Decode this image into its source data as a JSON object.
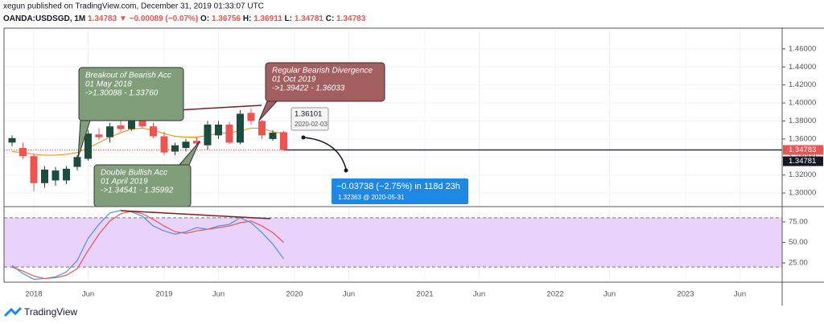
{
  "header": {
    "publisher": "xegun published on TradingView.com, December 31, 2019 01:33:07 UTC",
    "symbol": "OANDA:USDSGD, 1M",
    "price": "1.34783",
    "change": "−0.00089 (−0.07%)",
    "ohlc": [
      {
        "label": "O:",
        "value": "1.36756"
      },
      {
        "label": "H:",
        "value": "1.36911"
      },
      {
        "label": "L:",
        "value": "1.34781"
      },
      {
        "label": "C:",
        "value": "1.34783"
      }
    ]
  },
  "footer": {
    "brand": "TradingView"
  },
  "chart_data": [
    {
      "type": "candlestick",
      "x": [
        -2,
        -1,
        0,
        1,
        2,
        3,
        4,
        5,
        6,
        7,
        8,
        9,
        10,
        11,
        12,
        13,
        14,
        15,
        16,
        17,
        18,
        19,
        20,
        21,
        22,
        23
      ],
      "open": [
        1.356,
        1.35,
        1.341,
        1.311,
        1.314,
        1.314,
        1.329,
        1.338,
        1.365,
        1.362,
        1.375,
        1.371,
        1.388,
        1.374,
        1.363,
        1.346,
        1.35,
        1.358,
        1.353,
        1.364,
        1.376,
        1.356,
        1.389,
        1.38,
        1.36,
        1.36756
      ],
      "high": [
        1.364,
        1.356,
        1.344,
        1.33,
        1.329,
        1.33,
        1.342,
        1.37,
        1.372,
        1.378,
        1.382,
        1.39,
        1.39,
        1.378,
        1.368,
        1.356,
        1.36,
        1.362,
        1.38,
        1.38,
        1.379,
        1.392,
        1.394,
        1.381,
        1.37,
        1.36911
      ],
      "low": [
        1.352,
        1.338,
        1.302,
        1.306,
        1.308,
        1.31,
        1.325,
        1.336,
        1.359,
        1.356,
        1.368,
        1.369,
        1.372,
        1.361,
        1.342,
        1.342,
        1.346,
        1.353,
        1.348,
        1.36,
        1.354,
        1.354,
        1.376,
        1.36,
        1.358,
        1.34781
      ],
      "close": [
        1.361,
        1.341,
        1.311,
        1.326,
        1.325,
        1.327,
        1.34,
        1.366,
        1.362,
        1.374,
        1.371,
        1.388,
        1.374,
        1.363,
        1.345,
        1.353,
        1.357,
        1.355,
        1.376,
        1.376,
        1.356,
        1.388,
        1.38,
        1.364,
        1.367,
        1.34783
      ],
      "up_color": "#1b4d3e",
      "down_color": "#ef5350",
      "moving_average": {
        "color": "#f7931a",
        "values": [
          1.346,
          1.345,
          1.343,
          1.342,
          1.342,
          1.343,
          1.345,
          1.35,
          1.356,
          1.362,
          1.367,
          1.371,
          1.372,
          1.37,
          1.366,
          1.363,
          1.362,
          1.362,
          1.364,
          1.366,
          1.367,
          1.369,
          1.372,
          1.372,
          1.368,
          1.366
        ]
      },
      "xlim": [
        -2.74,
        68.89
      ],
      "xticks": [
        {
          "value": 0,
          "label": "2018"
        },
        {
          "value": 5,
          "label": "Jun"
        },
        {
          "value": 12,
          "label": "2019"
        },
        {
          "value": 17,
          "label": "Jun"
        },
        {
          "value": 24,
          "label": "2020"
        },
        {
          "value": 29,
          "label": "Jun"
        },
        {
          "value": 36,
          "label": "2021"
        },
        {
          "value": 41,
          "label": "Jun"
        },
        {
          "value": 48,
          "label": "2022"
        },
        {
          "value": 53,
          "label": "Jun"
        },
        {
          "value": 60,
          "label": "2023"
        },
        {
          "value": 65,
          "label": "Jun"
        }
      ],
      "ylim": [
        1.2858,
        1.4822
      ],
      "yticks": [
        {
          "value": 1.3,
          "label": "1.30000"
        },
        {
          "value": 1.32,
          "label": "1.32000"
        },
        {
          "value": 1.34,
          "label": "1.34000"
        },
        {
          "value": 1.36,
          "label": "1.36000"
        },
        {
          "value": 1.38,
          "label": "1.38000"
        },
        {
          "value": 1.4,
          "label": "1.40000"
        },
        {
          "value": 1.42,
          "label": "1.42000"
        },
        {
          "value": 1.44,
          "label": "1.44000"
        },
        {
          "value": 1.46,
          "label": "1.46000"
        }
      ],
      "grid": true,
      "price_tags": [
        {
          "value": 1.34783,
          "color": "#ef5350"
        },
        {
          "value": 1.34781,
          "color": "#131722"
        }
      ],
      "annotations": [
        {
          "lines": [
            "Breakout of Bearish Acc",
            "01 May 2018",
            "->1.30088 - 1.33760"
          ],
          "color": "#7f9e79"
        },
        {
          "lines": [
            "Regular Bearish Divergence",
            "01 Oct 2019",
            "->1.39422 - 1.36033"
          ],
          "color": "#a35f5f"
        },
        {
          "lines": [
            "Double Bullish Acc",
            "01 April 2019",
            "->1.34541 - 1.35992"
          ],
          "color": "#7f9e79"
        }
      ],
      "point_label": {
        "price": "1.36101",
        "date": "2020-02-03"
      },
      "measure": {
        "change": "−0.03738 (−2.75%) in 118d 23h",
        "target": "1.32363 @ 2020-05-31",
        "color": "#1e88e5"
      }
    },
    {
      "type": "line",
      "x": [
        -2,
        -1,
        0,
        1,
        2,
        3,
        4,
        5,
        6,
        7,
        8,
        9,
        10,
        11,
        12,
        13,
        14,
        15,
        16,
        17,
        18,
        19,
        20,
        21,
        22,
        23
      ],
      "series": [
        {
          "color": "#4a90e2",
          "values": [
            22,
            12,
            5,
            6,
            8,
            14,
            28,
            55,
            72,
            86,
            89,
            87,
            82,
            70,
            64,
            60,
            63,
            68,
            66,
            70,
            72,
            80,
            74,
            62,
            48,
            30
          ]
        },
        {
          "color": "#ef5350",
          "values": [
            20,
            15,
            9,
            6,
            7,
            10,
            18,
            40,
            60,
            76,
            85,
            88,
            85,
            78,
            70,
            63,
            61,
            64,
            66,
            68,
            70,
            74,
            76,
            70,
            62,
            50
          ]
        }
      ],
      "ylim": [
        2.5,
        92.6
      ],
      "yticks": [
        {
          "value": 25,
          "label": "25.00"
        },
        {
          "value": 50,
          "label": "50.00"
        },
        {
          "value": 75,
          "label": "75.00"
        }
      ],
      "band": [
        20,
        80
      ],
      "band_color": "#e9d3fb"
    }
  ]
}
